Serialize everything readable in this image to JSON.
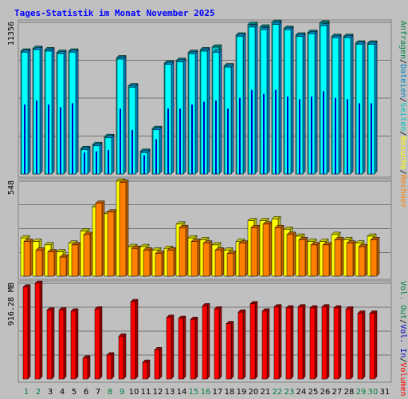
{
  "title": "Tages-Statistik im Monat November 2025",
  "colors": {
    "title": "#0000ff",
    "background": "#c0c0c0",
    "frame": "#808080",
    "weekday_label": "#000000",
    "weekend_label": "#008040",
    "hits": "#00c0c0",
    "hits_side": "#008080",
    "files": "#00ffff",
    "files_side": "#0080c0",
    "pages": "#0000c0",
    "visits": "#ffff00",
    "visits_side": "#c0c000",
    "sites": "#ff8000",
    "sites_side": "#c06000",
    "volume": "#ff0000",
    "volume_side": "#a00000"
  },
  "right_legend": {
    "top": [
      {
        "text": "Anfragen",
        "color": "#008040"
      },
      {
        "text": "/",
        "color": "#000000"
      },
      {
        "text": "Dateien",
        "color": "#0080c0"
      },
      {
        "text": "/",
        "color": "#000000"
      },
      {
        "text": "Seiten",
        "color": "#00c0c0"
      },
      {
        "text": "/",
        "color": "#000000"
      },
      {
        "text": "Besuche",
        "color": "#ffff00"
      },
      {
        "text": "/",
        "color": "#000000"
      },
      {
        "text": "Rechner",
        "color": "#ff8000"
      }
    ],
    "bottom": [
      {
        "text": "Vol. Out",
        "color": "#008040"
      },
      {
        "text": "/",
        "color": "#000000"
      },
      {
        "text": "Vol. In",
        "color": "#0000c0"
      },
      {
        "text": "/",
        "color": "#000000"
      },
      {
        "text": "Volumen",
        "color": "#ff0000"
      }
    ]
  },
  "chart_data": [
    {
      "type": "bar",
      "panel": "hits",
      "ymax_label": "11356",
      "ylim": [
        0,
        11356
      ],
      "days": [
        "1",
        "2",
        "3",
        "4",
        "5",
        "6",
        "7",
        "8",
        "9",
        "10",
        "11",
        "12",
        "13",
        "14",
        "15",
        "16",
        "17",
        "18",
        "19",
        "20",
        "21",
        "22",
        "23",
        "24",
        "25",
        "26",
        "27",
        "28",
        "29",
        "30",
        "31"
      ],
      "weekend_days": [
        "1",
        "2",
        "8",
        "9",
        "15",
        "16",
        "22",
        "23",
        "29",
        "30"
      ],
      "series": [
        {
          "name": "Anfragen",
          "values": [
            9200,
            9400,
            9300,
            9100,
            9200,
            1900,
            2200,
            2800,
            8700,
            6600,
            1700,
            3400,
            8300,
            8500,
            9100,
            9300,
            9500,
            8100,
            10400,
            11200,
            11000,
            11356,
            10900,
            10400,
            10600,
            11300,
            10300,
            10300,
            9800,
            9800,
            null
          ]
        },
        {
          "name": "Dateien",
          "values": [
            9100,
            9300,
            9200,
            9000,
            9100,
            1800,
            2100,
            2700,
            8600,
            6500,
            1600,
            3300,
            8200,
            8400,
            9000,
            9200,
            9100,
            8000,
            10300,
            11000,
            10800,
            11200,
            10800,
            10300,
            10500,
            11100,
            10200,
            10200,
            9700,
            9700,
            null
          ]
        },
        {
          "name": "Seiten",
          "values": [
            5200,
            5500,
            5200,
            5000,
            5300,
            1600,
            1700,
            1800,
            4900,
            3300,
            1400,
            2600,
            4900,
            4900,
            5200,
            5400,
            5500,
            4900,
            5700,
            6300,
            6000,
            6300,
            5800,
            5600,
            5800,
            6200,
            5700,
            5600,
            5300,
            5300,
            null
          ]
        }
      ]
    },
    {
      "type": "bar",
      "panel": "visits",
      "ymax_label": "548",
      "ylim": [
        0,
        548
      ],
      "series": [
        {
          "name": "Besuche",
          "values": [
            220,
            200,
            180,
            140,
            190,
            260,
            400,
            360,
            548,
            170,
            170,
            150,
            160,
            300,
            220,
            210,
            180,
            150,
            200,
            320,
            320,
            330,
            270,
            230,
            200,
            200,
            240,
            210,
            190,
            230,
            null
          ]
        },
        {
          "name": "Rechner",
          "values": [
            200,
            150,
            140,
            110,
            180,
            240,
            420,
            370,
            540,
            160,
            150,
            130,
            150,
            280,
            200,
            190,
            150,
            130,
            190,
            280,
            300,
            280,
            240,
            210,
            180,
            180,
            210,
            190,
            170,
            210,
            null
          ]
        }
      ]
    },
    {
      "type": "bar",
      "panel": "volume",
      "ymax_label": "916.28 MB",
      "ylim": [
        0,
        916.28
      ],
      "series": [
        {
          "name": "Volumen",
          "values": [
            880,
            916,
            660,
            660,
            650,
            200,
            670,
            230,
            410,
            740,
            160,
            280,
            590,
            580,
            570,
            700,
            670,
            530,
            640,
            720,
            650,
            690,
            680,
            690,
            680,
            690,
            680,
            670,
            630,
            630,
            null
          ]
        }
      ]
    }
  ]
}
